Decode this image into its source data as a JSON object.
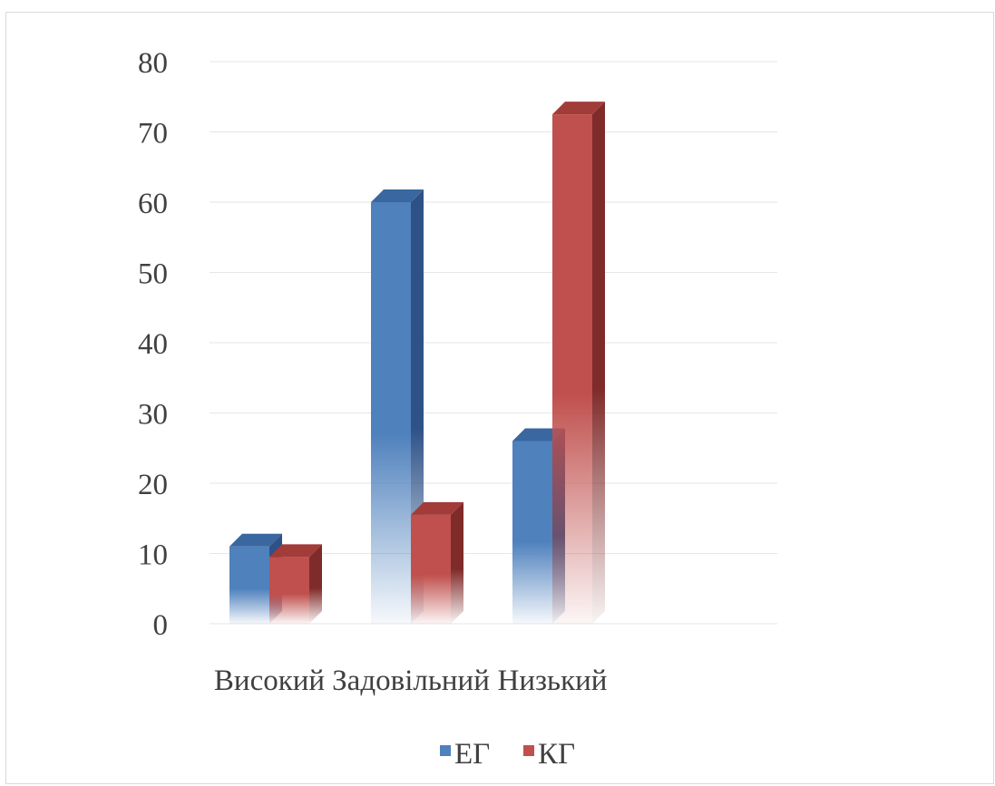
{
  "chart_data": {
    "type": "bar",
    "title": "",
    "xlabel": "",
    "ylabel": "",
    "categories": [
      "Високий",
      "Задовільний",
      "Низький"
    ],
    "series": [
      {
        "name": "ЕГ",
        "values": [
          11,
          60,
          26
        ]
      },
      {
        "name": "КГ",
        "values": [
          9.5,
          15.5,
          72.5
        ]
      }
    ],
    "ylim": [
      0,
      80
    ],
    "yticks": [
      0,
      10,
      20,
      30,
      40,
      50,
      60,
      70,
      80
    ],
    "grid": true,
    "legend": "bottom",
    "style": "3d-column-gradient",
    "colors": {
      "ЕГ": {
        "front": "#4f81bd",
        "side": "#2e5287",
        "top": "#3a679f"
      },
      "КГ": {
        "front": "#c0504d",
        "side": "#7f2b29",
        "top": "#a13c39"
      }
    }
  }
}
